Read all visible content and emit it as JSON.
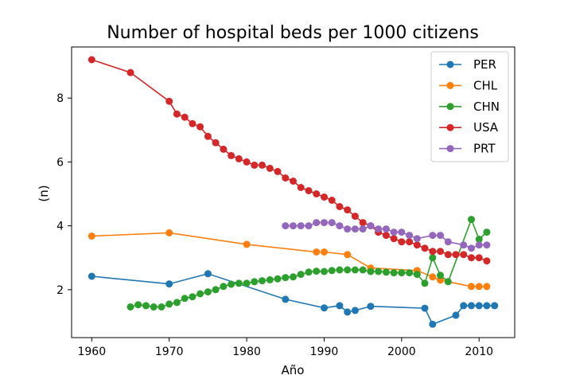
{
  "chart_data": {
    "type": "line",
    "title": "Number of hospital beds per 1000 citizens",
    "xlabel": "Año",
    "ylabel": "(n)",
    "xlim": [
      1957.4,
      2014.6
    ],
    "ylim": [
      0.5,
      9.6
    ],
    "xticks": [
      1960,
      1970,
      1980,
      1990,
      2000,
      2010
    ],
    "yticks": [
      2,
      4,
      6,
      8
    ],
    "grid": false,
    "legend_position": "top-right",
    "series": [
      {
        "name": "PER",
        "color": "#1f77b4",
        "x": [
          1960,
          1970,
          1975,
          1985,
          1990,
          1992,
          1993,
          1994,
          1996,
          2003,
          2004,
          2007,
          2008,
          2009,
          2010,
          2011,
          2012
        ],
        "y": [
          2.42,
          2.18,
          2.5,
          1.7,
          1.43,
          1.5,
          1.3,
          1.35,
          1.48,
          1.42,
          0.92,
          1.2,
          1.5,
          1.5,
          1.5,
          1.5,
          1.5
        ]
      },
      {
        "name": "CHL",
        "color": "#ff7f0e",
        "x": [
          1960,
          1970,
          1980,
          1989,
          1990,
          1993,
          1996,
          2002,
          2004,
          2005,
          2009,
          2010,
          2011
        ],
        "y": [
          3.68,
          3.78,
          3.42,
          3.18,
          3.18,
          3.1,
          2.68,
          2.6,
          2.4,
          2.3,
          2.1,
          2.1,
          2.1
        ]
      },
      {
        "name": "CHN",
        "color": "#2ca02c",
        "x": [
          1965,
          1966,
          1967,
          1968,
          1969,
          1970,
          1971,
          1972,
          1973,
          1974,
          1975,
          1976,
          1977,
          1978,
          1979,
          1980,
          1981,
          1982,
          1983,
          1984,
          1985,
          1986,
          1987,
          1988,
          1989,
          1990,
          1991,
          1992,
          1993,
          1994,
          1995,
          1996,
          1997,
          1998,
          1999,
          2000,
          2001,
          2002,
          2003,
          2004,
          2005,
          2006,
          2009,
          2010,
          2011
        ],
        "y": [
          1.46,
          1.53,
          1.5,
          1.46,
          1.46,
          1.55,
          1.6,
          1.73,
          1.78,
          1.87,
          1.93,
          2.0,
          2.1,
          2.17,
          2.2,
          2.2,
          2.25,
          2.28,
          2.31,
          2.34,
          2.38,
          2.4,
          2.48,
          2.55,
          2.58,
          2.57,
          2.6,
          2.62,
          2.62,
          2.62,
          2.62,
          2.57,
          2.57,
          2.55,
          2.53,
          2.53,
          2.53,
          2.48,
          2.2,
          3.0,
          2.45,
          2.25,
          4.2,
          3.58,
          3.8
        ]
      },
      {
        "name": "USA",
        "color": "#d62728",
        "x": [
          1960,
          1965,
          1970,
          1971,
          1972,
          1973,
          1974,
          1975,
          1976,
          1977,
          1978,
          1979,
          1980,
          1981,
          1982,
          1983,
          1984,
          1985,
          1986,
          1987,
          1988,
          1989,
          1990,
          1991,
          1992,
          1993,
          1994,
          1995,
          1996,
          1997,
          1998,
          1999,
          2000,
          2001,
          2002,
          2003,
          2004,
          2005,
          2006,
          2007,
          2008,
          2009,
          2010,
          2011
        ],
        "y": [
          9.2,
          8.8,
          7.9,
          7.5,
          7.4,
          7.2,
          7.1,
          6.8,
          6.6,
          6.4,
          6.2,
          6.1,
          6.0,
          5.9,
          5.9,
          5.8,
          5.7,
          5.5,
          5.4,
          5.2,
          5.1,
          5.0,
          4.9,
          4.8,
          4.6,
          4.5,
          4.3,
          4.1,
          4.0,
          3.8,
          3.7,
          3.6,
          3.5,
          3.5,
          3.4,
          3.3,
          3.2,
          3.2,
          3.1,
          3.1,
          3.1,
          3.0,
          3.0,
          2.9
        ]
      },
      {
        "name": "PRT",
        "color": "#9467bd",
        "x": [
          1985,
          1986,
          1987,
          1988,
          1989,
          1990,
          1991,
          1992,
          1993,
          1994,
          1995,
          1996,
          1997,
          1998,
          1999,
          2000,
          2001,
          2002,
          2004,
          2005,
          2006,
          2008,
          2009,
          2010,
          2011
        ],
        "y": [
          4.0,
          4.0,
          4.0,
          4.0,
          4.1,
          4.1,
          4.1,
          4.0,
          3.9,
          3.9,
          3.9,
          4.0,
          3.9,
          3.9,
          3.8,
          3.8,
          3.7,
          3.6,
          3.7,
          3.7,
          3.5,
          3.4,
          3.3,
          3.4,
          3.4
        ]
      }
    ]
  }
}
